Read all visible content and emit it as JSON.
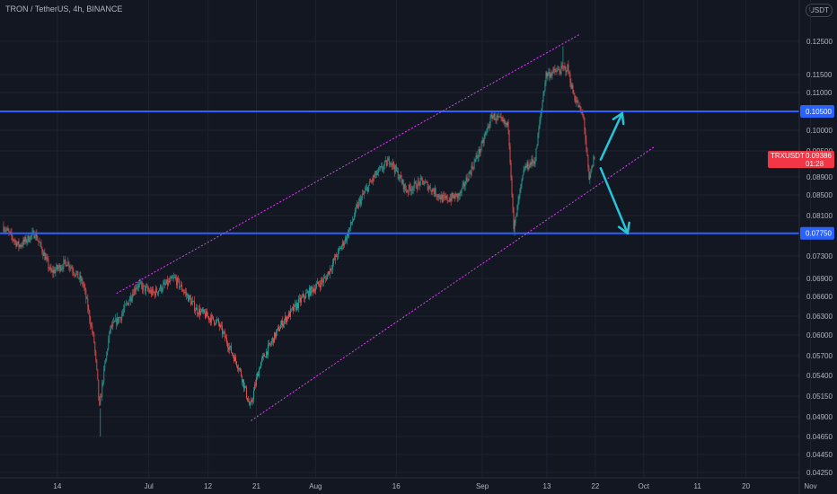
{
  "header": {
    "title": "TRON / TetherUS, 4h, BINANCE",
    "currency": "USDT"
  },
  "price_tag": {
    "symbol": "TRXUSDT",
    "price": "0.09386",
    "countdown": "01:28",
    "color": "#f23645"
  },
  "colors": {
    "background": "#131722",
    "grid": "#1f2230",
    "up": "#26a69a",
    "down": "#ef5350",
    "level": "#2962ff",
    "channel": "#e040fb",
    "arrow": "#26c6da",
    "axis_text": "#b2b5be"
  },
  "chart_data": {
    "type": "candlestick",
    "ylim": [
      0.0425,
      0.129
    ],
    "price_ticks": [
      "0.12500",
      "0.11500",
      "0.11000",
      "0.10000",
      "0.09500",
      "0.08900",
      "0.08500",
      "0.08100",
      "0.07300",
      "0.06900",
      "0.06600",
      "0.06300",
      "0.06000",
      "0.05700",
      "0.05400",
      "0.05150",
      "0.04900",
      "0.04650",
      "0.04450",
      "0.04250"
    ],
    "date_ticks": [
      "14",
      "Jul",
      "12",
      "21",
      "Aug",
      "16",
      "Sep",
      "13",
      "22",
      "Oct",
      "11",
      "20",
      "Nov"
    ],
    "horizontal_levels": [
      {
        "value": 0.105,
        "label": "0.10500"
      },
      {
        "value": 0.0775,
        "label": "0.07750"
      }
    ],
    "channel": {
      "upper": [
        [
          "2021-06-25",
          0.0665
        ],
        [
          "2021-09-19",
          0.127
        ]
      ],
      "lower": [
        [
          "2021-07-20",
          0.0485
        ],
        [
          "2021-10-03",
          0.096
        ]
      ]
    },
    "projection_arrows": [
      {
        "from": [
          "2021-09-23",
          0.093
        ],
        "to": [
          "2021-09-27",
          0.1045
        ]
      },
      {
        "from": [
          "2021-09-23",
          0.091
        ],
        "to": [
          "2021-09-28",
          0.0775
        ]
      }
    ],
    "price_path": [
      [
        "2021-06-04",
        0.079
      ],
      [
        "2021-06-07",
        0.075
      ],
      [
        "2021-06-10",
        0.0775
      ],
      [
        "2021-06-13",
        0.07
      ],
      [
        "2021-06-16",
        0.072
      ],
      [
        "2021-06-19",
        0.068
      ],
      [
        "2021-06-21",
        0.059
      ],
      [
        "2021-06-22",
        0.05
      ],
      [
        "2021-06-24",
        0.061
      ],
      [
        "2021-06-26",
        0.063
      ],
      [
        "2021-06-29",
        0.068
      ],
      [
        "2021-07-02",
        0.0665
      ],
      [
        "2021-07-06",
        0.069
      ],
      [
        "2021-07-10",
        0.064
      ],
      [
        "2021-07-14",
        0.062
      ],
      [
        "2021-07-18",
        0.055
      ],
      [
        "2021-07-20",
        0.05
      ],
      [
        "2021-07-22",
        0.056
      ],
      [
        "2021-07-26",
        0.062
      ],
      [
        "2021-07-30",
        0.066
      ],
      [
        "2021-08-03",
        0.069
      ],
      [
        "2021-08-07",
        0.077
      ],
      [
        "2021-08-09",
        0.083
      ],
      [
        "2021-08-12",
        0.089
      ],
      [
        "2021-08-15",
        0.093
      ],
      [
        "2021-08-18",
        0.086
      ],
      [
        "2021-08-21",
        0.088
      ],
      [
        "2021-08-25",
        0.084
      ],
      [
        "2021-08-28",
        0.085
      ],
      [
        "2021-09-01",
        0.096
      ],
      [
        "2021-09-03",
        0.104
      ],
      [
        "2021-09-06",
        0.101
      ],
      [
        "2021-09-07",
        0.078
      ],
      [
        "2021-09-09",
        0.091
      ],
      [
        "2021-09-11",
        0.093
      ],
      [
        "2021-09-13",
        0.115
      ],
      [
        "2021-09-15",
        0.116
      ],
      [
        "2021-09-17",
        0.117
      ],
      [
        "2021-09-18",
        0.11
      ],
      [
        "2021-09-20",
        0.103
      ],
      [
        "2021-09-21",
        0.088
      ],
      [
        "2021-09-22",
        0.0939
      ]
    ]
  }
}
